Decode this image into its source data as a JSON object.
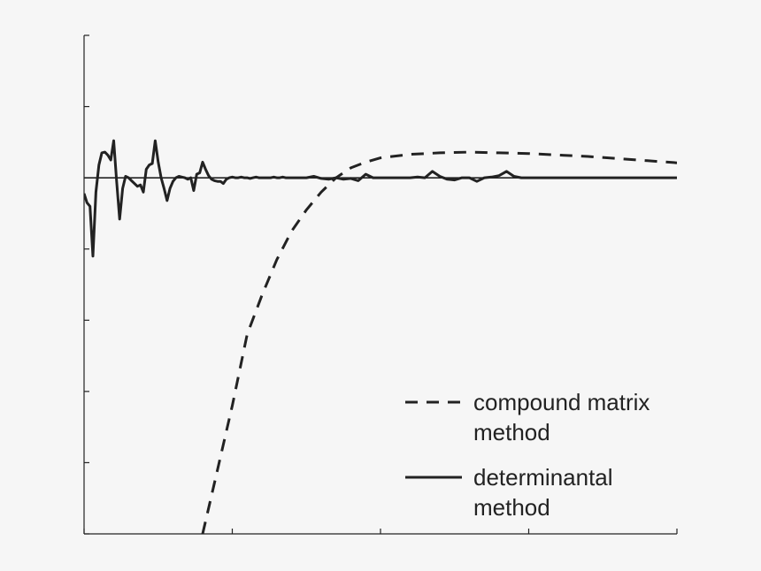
{
  "chart_data": {
    "type": "line",
    "title": "",
    "xlabel": "",
    "ylabel": "",
    "xlim": [
      0,
      4
    ],
    "ylim": [
      -5,
      2
    ],
    "x_ticks": [
      0,
      1,
      2,
      3,
      4
    ],
    "y_ticks": [
      -5,
      -4,
      -3,
      -2,
      -1,
      0,
      1,
      2
    ],
    "zero_line": true,
    "grid": false,
    "legend_position": "bottom-right",
    "series": [
      {
        "name_lines": [
          "compound matrix",
          "method"
        ],
        "style": "dashed",
        "color": "#222222",
        "x": [
          0.8,
          0.9,
          1.0,
          1.1,
          1.2,
          1.3,
          1.4,
          1.5,
          1.6,
          1.7,
          1.8,
          1.9,
          2.0,
          2.2,
          2.4,
          2.6,
          2.8,
          3.0,
          3.2,
          3.4,
          3.6,
          3.8,
          4.0
        ],
        "y": [
          -5.0,
          -4.1,
          -3.2,
          -2.2,
          -1.65,
          -1.15,
          -0.75,
          -0.45,
          -0.2,
          0.0,
          0.14,
          0.22,
          0.28,
          0.33,
          0.35,
          0.36,
          0.35,
          0.34,
          0.32,
          0.3,
          0.27,
          0.24,
          0.21
        ]
      },
      {
        "name_lines": [
          "determinantal",
          "method"
        ],
        "style": "solid",
        "color": "#222222",
        "x": [
          0.0,
          0.02,
          0.04,
          0.06,
          0.08,
          0.1,
          0.12,
          0.14,
          0.16,
          0.18,
          0.2,
          0.22,
          0.24,
          0.26,
          0.28,
          0.3,
          0.32,
          0.34,
          0.36,
          0.38,
          0.4,
          0.42,
          0.44,
          0.46,
          0.48,
          0.5,
          0.52,
          0.54,
          0.56,
          0.58,
          0.6,
          0.62,
          0.64,
          0.66,
          0.68,
          0.7,
          0.72,
          0.74,
          0.76,
          0.78,
          0.8,
          0.82,
          0.84,
          0.86,
          0.88,
          0.9,
          0.92,
          0.94,
          0.96,
          0.98,
          1.0,
          1.02,
          1.04,
          1.06,
          1.08,
          1.1,
          1.12,
          1.14,
          1.16,
          1.18,
          1.2,
          1.22,
          1.24,
          1.26,
          1.28,
          1.3,
          1.32,
          1.34,
          1.36,
          1.38,
          1.4,
          1.45,
          1.5,
          1.55,
          1.6,
          1.65,
          1.7,
          1.75,
          1.8,
          1.85,
          1.9,
          1.95,
          2.0,
          2.05,
          2.1,
          2.15,
          2.2,
          2.25,
          2.3,
          2.35,
          2.4,
          2.45,
          2.5,
          2.55,
          2.6,
          2.65,
          2.7,
          2.75,
          2.8,
          2.85,
          2.9,
          2.95,
          3.0,
          3.05,
          3.1,
          3.15,
          3.2,
          3.25,
          3.3,
          3.35,
          3.4,
          3.45,
          3.5,
          3.55,
          3.6,
          3.65,
          3.7,
          3.75,
          3.8,
          3.85,
          3.9,
          3.95,
          4.0
        ],
        "y": [
          -0.22,
          -0.35,
          -0.4,
          -1.1,
          -0.2,
          0.18,
          0.35,
          0.36,
          0.32,
          0.25,
          0.52,
          -0.05,
          -0.58,
          -0.15,
          0.02,
          0.0,
          -0.04,
          -0.08,
          -0.12,
          -0.1,
          -0.2,
          0.12,
          0.18,
          0.2,
          0.52,
          0.22,
          0.0,
          -0.15,
          -0.32,
          -0.15,
          -0.05,
          0.0,
          0.02,
          0.01,
          0.0,
          -0.02,
          0.0,
          -0.18,
          0.05,
          0.07,
          0.22,
          0.12,
          0.03,
          -0.02,
          -0.04,
          -0.05,
          -0.05,
          -0.08,
          -0.02,
          0.0,
          0.01,
          0.0,
          0.0,
          0.01,
          0.0,
          0.0,
          -0.01,
          0.0,
          0.01,
          0.0,
          0.0,
          0.0,
          0.0,
          0.0,
          0.01,
          0.0,
          0.0,
          0.01,
          0.0,
          0.0,
          0.0,
          0.0,
          0.0,
          0.02,
          -0.01,
          -0.02,
          0.0,
          -0.02,
          -0.01,
          -0.04,
          0.05,
          0.0,
          0.0,
          0.0,
          0.0,
          0.0,
          0.0,
          0.01,
          0.0,
          0.09,
          0.02,
          -0.02,
          -0.03,
          0.0,
          0.0,
          -0.05,
          0.0,
          0.01,
          0.03,
          0.09,
          0.02,
          0.0,
          0.0,
          0.0,
          0.0,
          0.0,
          0.0,
          0.0,
          0.0,
          0.0,
          0.0,
          0.0,
          0.0,
          0.0,
          0.0,
          0.0,
          0.0,
          0.0,
          0.0,
          0.0,
          0.0,
          0.0,
          0.0
        ]
      }
    ]
  }
}
